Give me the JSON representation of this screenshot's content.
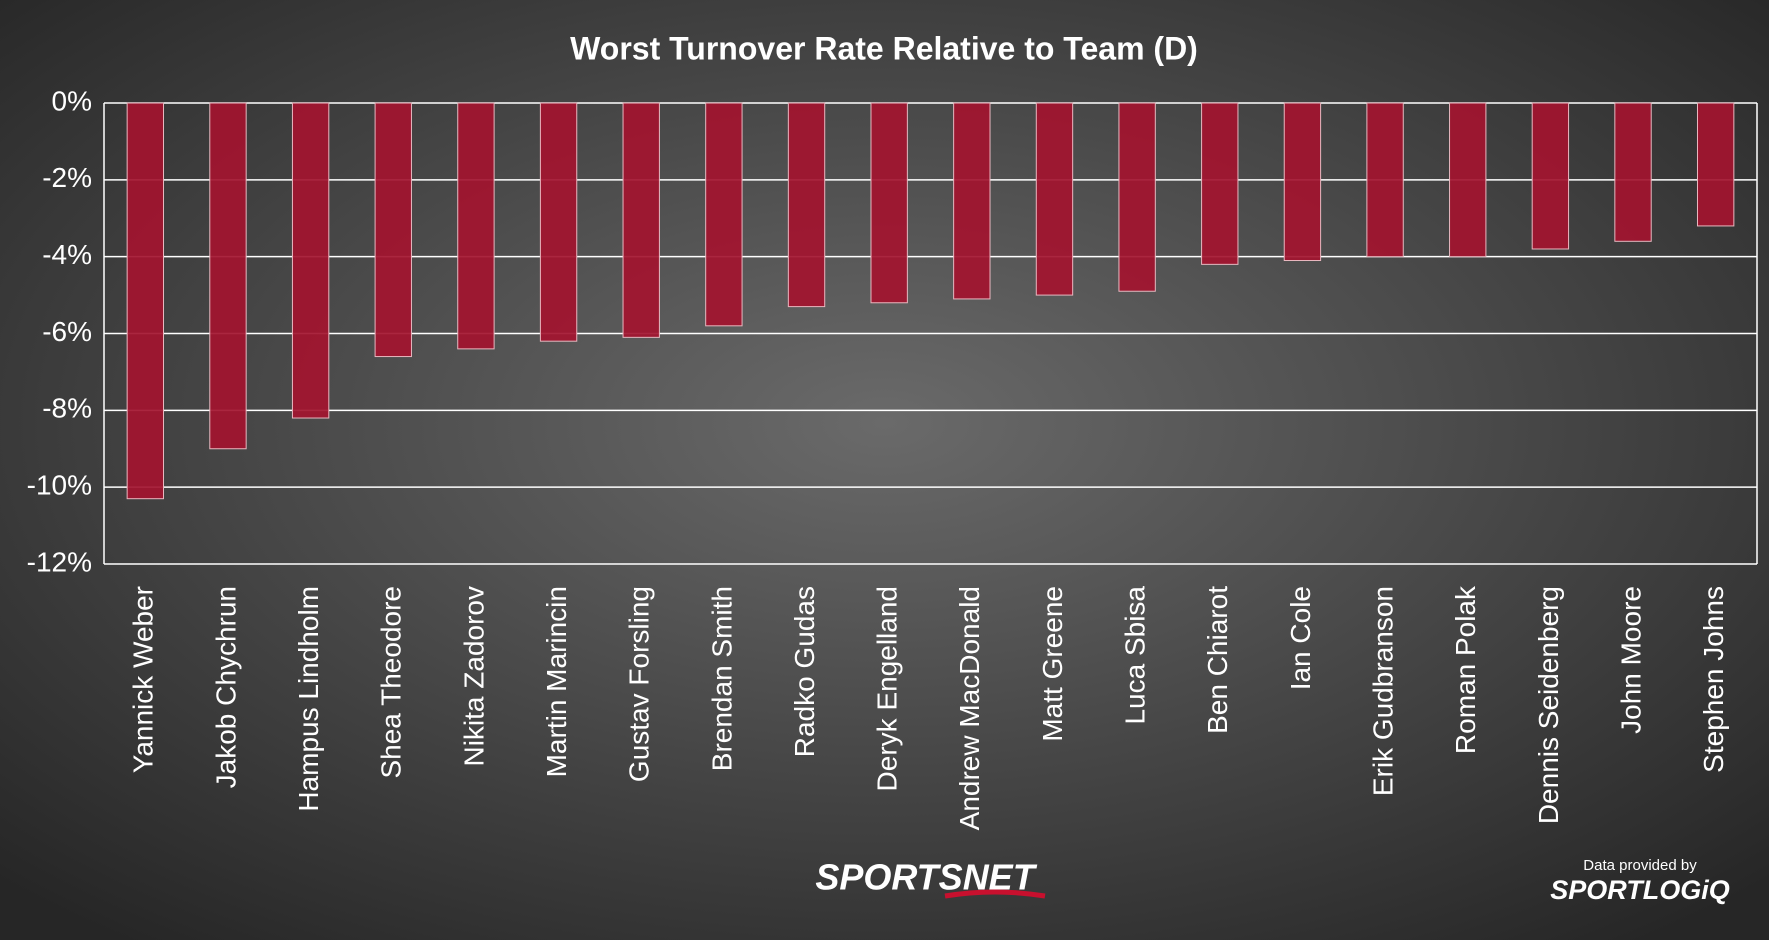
{
  "chart_data": {
    "type": "bar",
    "title": "Worst Turnover Rate Relative to Team (D)",
    "categories": [
      "Yannick Weber",
      "Jakob Chychrun",
      "Hampus Lindholm",
      "Shea Theodore",
      "Nikita Zadorov",
      "Martin Marincin",
      "Gustav Forsling",
      "Brendan Smith",
      "Radko Gudas",
      "Deryk Engelland",
      "Andrew MacDonald",
      "Matt Greene",
      "Luca Sbisa",
      "Ben Chiarot",
      "Ian Cole",
      "Erik Gudbranson",
      "Roman Polak",
      "Dennis Seidenberg",
      "John Moore",
      "Stephen Johns"
    ],
    "values": [
      -10.3,
      -9.0,
      -8.2,
      -6.6,
      -6.4,
      -6.2,
      -6.1,
      -5.8,
      -5.3,
      -5.2,
      -5.1,
      -5.0,
      -4.9,
      -4.2,
      -4.1,
      -4.0,
      -4.0,
      -3.8,
      -3.6,
      -3.2
    ],
    "color": "#a3142f",
    "ylim": [
      -12,
      0
    ],
    "yticks": [
      {
        "value": 0,
        "label": "0%"
      },
      {
        "value": -2,
        "label": "-2%"
      },
      {
        "value": -4,
        "label": "-4%"
      },
      {
        "value": -6,
        "label": "-6%"
      },
      {
        "value": -8,
        "label": "-8%"
      },
      {
        "value": -10,
        "label": "-10%"
      },
      {
        "value": -12,
        "label": "-12%"
      }
    ],
    "grid": true,
    "annotations": [
      "SPORTSNET",
      "Data provided by",
      "SPORTLOGiQ"
    ]
  }
}
